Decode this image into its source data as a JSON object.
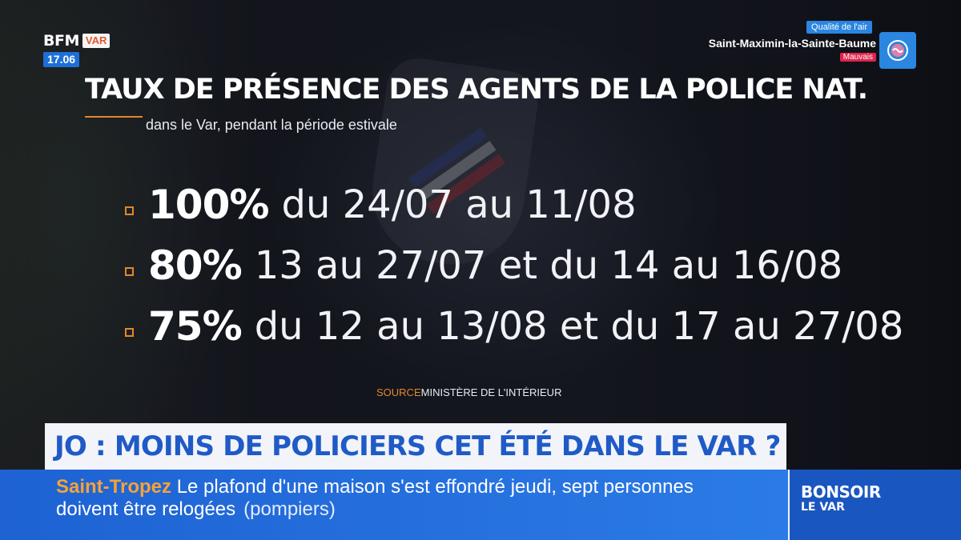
{
  "logo": {
    "brand": "BFM",
    "region": "VAR",
    "time": "17.06"
  },
  "air_quality": {
    "label": "Qualité de l'air",
    "city": "Saint-Maximin-la-Sainte-Baume",
    "status": "Mauvais",
    "icon": "air-quality-icon"
  },
  "graphic": {
    "title": "TAUX DE PRÉSENCE DES AGENTS DE LA POLICE NAT.",
    "subtitle": "dans le Var, pendant la période estivale",
    "items": [
      {
        "percent": "100%",
        "period": "du 24/07 au 11/08"
      },
      {
        "percent": "80%",
        "period": "13 au 27/07 et du 14 au 16/08"
      },
      {
        "percent": "75%",
        "period": "du 12 au 13/08 et du 17 au 27/08"
      }
    ],
    "source_key": "SOURCE",
    "source_value": "MINISTÈRE DE L'INTÉRIEUR"
  },
  "headline": "JO : MOINS DE POLICIERS CET ÉTÉ DANS LE VAR ?",
  "ticker": {
    "place": "Saint-Tropez",
    "line1": "Le plafond d'une maison s'est effondré jeudi, sept personnes",
    "line2": "doivent être relogées",
    "source": "(pompiers)"
  },
  "program": {
    "name": "BONSOIR",
    "sub": "LE VAR"
  },
  "colors": {
    "accent_orange": "#e4862d",
    "brand_blue": "#1e62d3",
    "headline_blue": "#1f5ac7",
    "status_red": "#e0244c"
  }
}
